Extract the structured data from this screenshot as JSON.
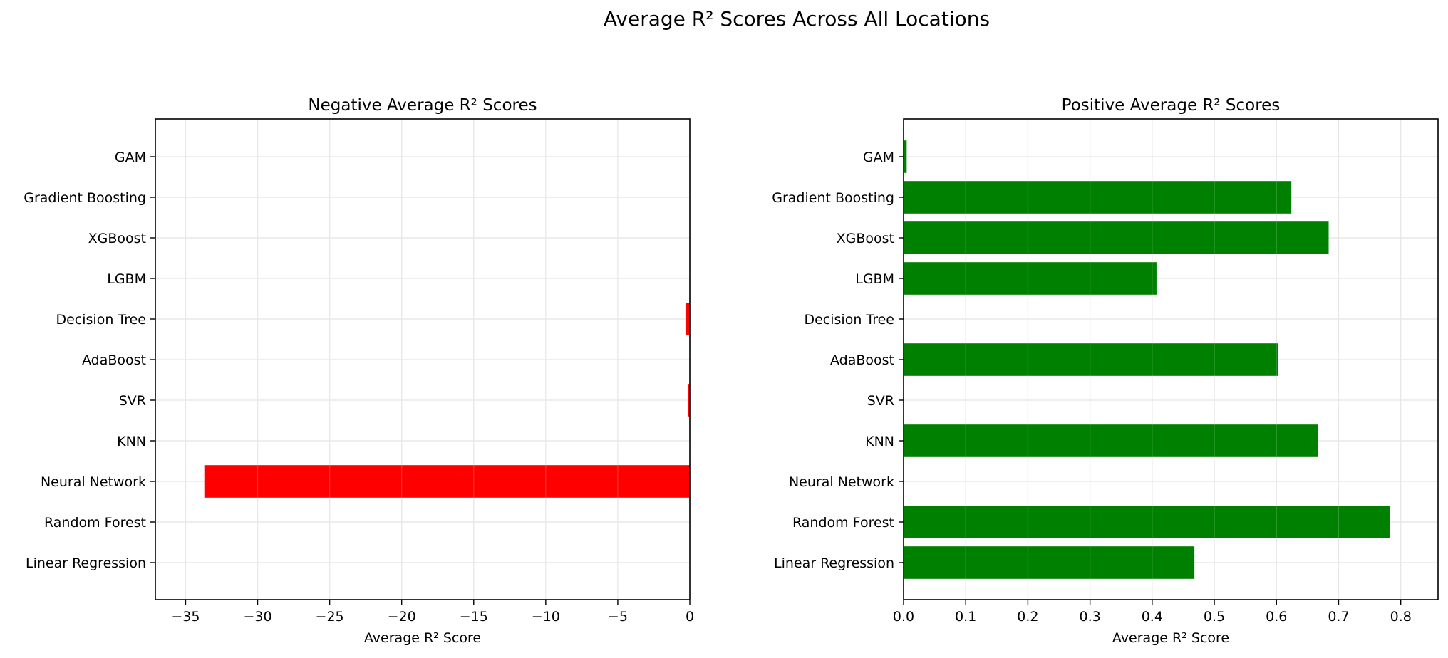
{
  "figure": {
    "suptitle": "Average R² Scores Across All Locations"
  },
  "colors": {
    "negative_bar": "#ff0000",
    "positive_bar": "#008000",
    "grid": "#e3e3e3",
    "axis": "#000000"
  },
  "chart_data": [
    {
      "type": "bar",
      "orientation": "horizontal",
      "title": "Negative Average R² Scores",
      "xlabel": "Average R² Score",
      "ylabel": "",
      "categories": [
        "Linear Regression",
        "Random Forest",
        "Neural Network",
        "KNN",
        "SVR",
        "AdaBoost",
        "Decision Tree",
        "LGBM",
        "XGBoost",
        "Gradient Boosting",
        "GAM"
      ],
      "values": [
        0,
        0,
        -33.7,
        0,
        -0.1,
        0,
        -0.3,
        0,
        0,
        0,
        0
      ],
      "xlim": [
        -37.1,
        0
      ],
      "xticks": [
        -35,
        -30,
        -25,
        -20,
        -15,
        -10,
        -5,
        0
      ],
      "xtick_labels": [
        "−35",
        "−30",
        "−25",
        "−20",
        "−15",
        "−10",
        "−5",
        "0"
      ],
      "grid": true,
      "color": "#ff0000"
    },
    {
      "type": "bar",
      "orientation": "horizontal",
      "title": "Positive Average R² Scores",
      "xlabel": "Average R² Score",
      "ylabel": "",
      "categories": [
        "Linear Regression",
        "Random Forest",
        "Neural Network",
        "KNN",
        "SVR",
        "AdaBoost",
        "Decision Tree",
        "LGBM",
        "XGBoost",
        "Gradient Boosting",
        "GAM"
      ],
      "values": [
        0.468,
        0.782,
        0,
        0.667,
        0,
        0.603,
        0,
        0.407,
        0.684,
        0.624,
        0.005
      ],
      "xlim": [
        0,
        0.86
      ],
      "xticks": [
        0,
        0.1,
        0.2,
        0.3,
        0.4,
        0.5,
        0.6,
        0.7,
        0.8
      ],
      "xtick_labels": [
        "0.0",
        "0.1",
        "0.2",
        "0.3",
        "0.4",
        "0.5",
        "0.6",
        "0.7",
        "0.8"
      ],
      "grid": true,
      "color": "#008000"
    }
  ]
}
